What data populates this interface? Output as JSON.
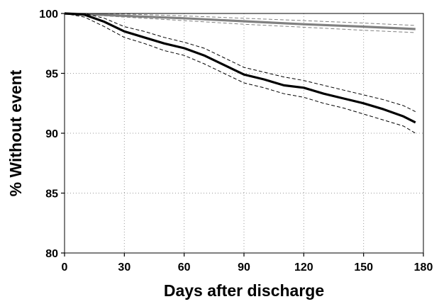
{
  "chart_data": {
    "type": "line",
    "xlabel": "Days after discharge",
    "ylabel": "% Without event",
    "xlim": [
      0,
      180
    ],
    "ylim": [
      80,
      100
    ],
    "xticks": [
      0,
      30,
      60,
      90,
      120,
      150,
      180
    ],
    "yticks": [
      80,
      85,
      90,
      95,
      100
    ],
    "grid": true,
    "legend": "none",
    "series": [
      {
        "color": "#808080",
        "x": [
          0,
          10,
          30,
          60,
          90,
          120,
          150,
          176
        ],
        "y": [
          100,
          99.95,
          99.8,
          99.6,
          99.35,
          99.1,
          98.9,
          98.7
        ],
        "ci_lower": [
          100,
          99.9,
          99.7,
          99.4,
          99.1,
          98.85,
          98.6,
          98.4
        ],
        "ci_upper": [
          100,
          100,
          99.95,
          99.8,
          99.6,
          99.4,
          99.2,
          99.0
        ]
      },
      {
        "color": "#000000",
        "x": [
          0,
          10,
          20,
          30,
          40,
          50,
          60,
          70,
          80,
          90,
          100,
          110,
          120,
          130,
          140,
          150,
          160,
          170,
          176
        ],
        "y": [
          100,
          99.9,
          99.3,
          98.5,
          98.0,
          97.5,
          97.1,
          96.5,
          95.7,
          94.9,
          94.5,
          94.0,
          93.8,
          93.3,
          92.9,
          92.5,
          92.0,
          91.4,
          90.9
        ],
        "ci_lower": [
          100,
          99.7,
          98.9,
          98.0,
          97.5,
          96.9,
          96.5,
          95.8,
          95.0,
          94.2,
          93.8,
          93.3,
          93.0,
          92.5,
          92.1,
          91.6,
          91.1,
          90.6,
          90.0
        ],
        "ci_upper": [
          100,
          100,
          99.6,
          98.9,
          98.5,
          98.0,
          97.6,
          97.1,
          96.3,
          95.5,
          95.1,
          94.7,
          94.4,
          94.0,
          93.6,
          93.2,
          92.8,
          92.3,
          91.8
        ]
      }
    ]
  }
}
